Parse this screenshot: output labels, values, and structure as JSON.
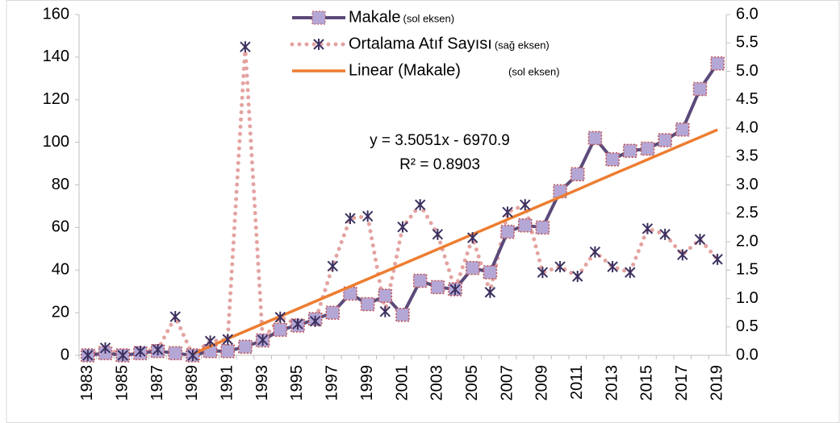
{
  "chart_data": {
    "type": "line",
    "categories": [
      "1983",
      null,
      "1985",
      null,
      "1987",
      null,
      "1989",
      null,
      "1991",
      null,
      "1993",
      null,
      "1995",
      null,
      "1997",
      null,
      "1999",
      null,
      "2001",
      null,
      "2003",
      null,
      "2005",
      null,
      "2007",
      null,
      "2009",
      null,
      "2011",
      null,
      "2013",
      null,
      "2015",
      null,
      "2017",
      null,
      "2019"
    ],
    "series": [
      {
        "name": "Makale",
        "axis_note": "(sol eksen)",
        "axis": "y",
        "color": "#5b4a7a",
        "marker_color": "#b4a7d6",
        "values": [
          0,
          1,
          0,
          1,
          2,
          1,
          0,
          2,
          2,
          4,
          7,
          12,
          14,
          17,
          20,
          29,
          24,
          28,
          19,
          35,
          32,
          31,
          41,
          39,
          58,
          61,
          60,
          77,
          85,
          102,
          92,
          96,
          97,
          101,
          106,
          125,
          137
        ]
      },
      {
        "name": "Ortalama Atıf Sayısı",
        "axis_note": "(sağ eksen)",
        "axis": "y2",
        "color": "#e3a3a0",
        "marker_color": "#3b3060",
        "values": [
          0.0,
          0.13,
          0.0,
          0.07,
          0.1,
          0.68,
          0.0,
          0.25,
          0.28,
          5.43,
          0.27,
          0.67,
          0.55,
          0.6,
          1.57,
          2.41,
          2.45,
          0.77,
          2.26,
          2.65,
          2.13,
          1.16,
          2.07,
          1.11,
          2.52,
          2.65,
          1.46,
          1.56,
          1.39,
          1.82,
          1.56,
          1.46,
          2.23,
          2.13,
          1.77,
          2.04,
          1.69
        ]
      },
      {
        "name": "Linear (Makale)",
        "axis_note": "(sol eksen)",
        "axis": "y",
        "color": "#ed7d31",
        "values": [
          null,
          null,
          null,
          null,
          null,
          null,
          0.7,
          4.2,
          7.8,
          11.3,
          14.8,
          18.3,
          21.8,
          25.3,
          28.8,
          32.3,
          35.8,
          39.3,
          42.8,
          46.3,
          49.8,
          53.3,
          56.8,
          60.3,
          63.8,
          67.3,
          70.8,
          74.3,
          77.8,
          81.4,
          84.9,
          88.4,
          91.9,
          95.4,
          98.9,
          102.4,
          105.9
        ]
      }
    ],
    "annotations": [
      "y = 3.5051x - 6970.9",
      "R² = 0.8903"
    ],
    "ylim": [
      0,
      160
    ],
    "yticks": [
      0,
      20,
      40,
      60,
      80,
      100,
      120,
      140,
      160
    ],
    "y2lim": [
      0,
      6
    ],
    "y2ticks": [
      {
        "value": 0,
        "label": "0.0"
      },
      0.5,
      {
        "value": 1,
        "label": "1.0"
      },
      1.5,
      {
        "value": 2,
        "label": "2.0"
      },
      2.5,
      {
        "value": 3,
        "label": "3.0"
      },
      3.5,
      {
        "value": 4,
        "label": "4.0"
      },
      4.5,
      {
        "value": 5,
        "label": "5.0"
      },
      5.5,
      {
        "value": 6,
        "label": "6.0"
      }
    ]
  }
}
